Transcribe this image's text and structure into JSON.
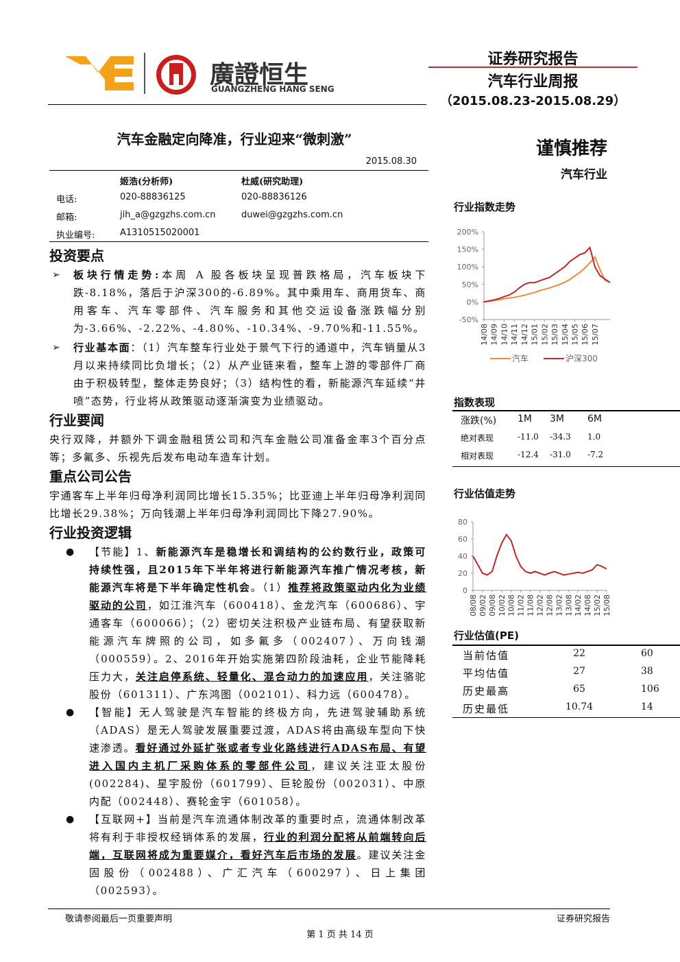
{
  "header": {
    "brand": "廣證恒生",
    "brand_en": "GUANGZHENG HANG SENG",
    "title": "证券研究报告",
    "subtitle": "汽车行业周报",
    "period": "（2015.08.23-2015.08.29）"
  },
  "report": {
    "title": "汽车金融定向降准，行业迎来“微刺激”",
    "date": "2015.08.30"
  },
  "rating": {
    "label": "谨慎推荐",
    "sector": "汽车行业"
  },
  "contacts": {
    "names": [
      "姬浩(分析师)",
      "杜威(研究助理)"
    ],
    "rows": [
      [
        "电话:",
        "020-88836125",
        "020-88836126"
      ],
      [
        "邮箱:",
        "jih_a@gzgzhs.com.cn",
        "duwei@gzgzhs.com.cn"
      ],
      [
        "执业编号:",
        "A1310515020001"
      ]
    ]
  },
  "sections": [
    {
      "heading": "投资要点",
      "bullet": "arrow",
      "items": [
        {
          "runs": [
            {
              "text": "板块行情走势:",
              "style": "bold"
            },
            {
              "text": "本周 A 股各板块呈现普跌格局，汽车板块下跌-8.18%，落后于沪深300的-6.89%。其中乘用车、商用货车、商用客车、汽车零部件、汽车服务和其他交运设备涨跌幅分别为-3.66%、-2.22%、-4.80%、-10.34%、-9.70%和-11.55%。",
              "style": "normal"
            }
          ]
        },
        {
          "runs": [
            {
              "text": "行业基本面",
              "style": "bold"
            },
            {
              "text": "：（1）汽车整车行业处于景气下行的通道中，汽车销量从3月以来持续同比负增长；（2）从产业链来看，整车上游的零部件厂商由于积极转型，整体走势良好；（3）结构性的看，新能源汽车延续“井喷”态势，行业将从政策驱动逐渐演变为业绩驱动。",
              "style": "normal"
            }
          ]
        }
      ]
    },
    {
      "heading": "行业要闻",
      "bullet": "none",
      "items": [
        {
          "runs": [
            {
              "text": "央行双降，并额外下调金融租赁公司和汽车金融公司准备金率3个百分点等；多氟多、乐视先后发布电动车造车计划。",
              "style": "normal"
            }
          ]
        }
      ]
    },
    {
      "heading": "重点公司公告",
      "bullet": "none",
      "items": [
        {
          "runs": [
            {
              "text": "宇通客车上半年归母净利润同比增长15.35%；比亚迪上半年归母净利润同比增长29.38%；万向钱潮上半年归母净利润同比下降27.90%。",
              "style": "normal"
            }
          ]
        }
      ]
    },
    {
      "heading": "行业投资逻辑",
      "bullet": "dot",
      "items": [
        {
          "runs": [
            {
              "text": "【节能】1、",
              "style": "normal"
            },
            {
              "text": "新能源汽车是稳增长和调结构的公约数行业，政策可持续性强，且2015年下半年将进行新能源汽车推广情况考核，新能源汽车将是下半年确定性机会",
              "style": "bold"
            },
            {
              "text": "。（1）",
              "style": "normal"
            },
            {
              "text": "推荐将政策驱动内化为业绩驱动的公司",
              "style": "bold-underline"
            },
            {
              "text": "，如江淮汽车（600418）、金龙汽车（600686）、宇通客车（600066）；（2）密切关注积极产业链布局、有望获取新能源汽车牌照的公司，如多氟多（002407）、万向钱潮（000559）。2、2016年开始实施第四阶段油耗，企业节能降耗压力大，",
              "style": "normal"
            },
            {
              "text": "关注启停系统、轻量化、混合动力的加速应用",
              "style": "bold-underline"
            },
            {
              "text": "，关注骆驼股份（601311）、广东鸿图（002101）、科力远（600478）。",
              "style": "normal"
            }
          ]
        },
        {
          "runs": [
            {
              "text": "【智能】无人驾驶是汽车智能的终极方向，先进驾驶辅助系统（ADAS）是无人驾驶发展重要过渡，ADAS将由高级车型向下快速渗透。",
              "style": "normal"
            },
            {
              "text": "看好通过外延扩张或者专业化路线进行ADAS布局、有望进入国内主机厂采购体系的零部件公司",
              "style": "bold-underline"
            },
            {
              "text": "，建议关注亚太股份(002284)、星宇股份（601799）、巨轮股份（002031）、中原内配（002448）、赛轮金宇（601058）。",
              "style": "normal"
            }
          ]
        },
        {
          "runs": [
            {
              "text": "【互联网+】当前是汽车流通体制改革的重要时点，流通体制改革将有利于非授权经销体系的发展，",
              "style": "normal"
            },
            {
              "text": "行业的利润分配将从前端转向后端，互联网将成为重要媒介，看好汽车后市场的发展",
              "style": "bold-underline"
            },
            {
              "text": "。建议关注金固股份（002488）、广汇汽车（600297）、日上集团（002593）。",
              "style": "normal"
            }
          ]
        }
      ]
    }
  ],
  "chart_data": [
    {
      "type": "line",
      "title": "行业指数走势",
      "categories": [
        "14/08",
        null,
        "14/09",
        null,
        "14/10",
        null,
        "14/11",
        null,
        "14/12",
        null,
        "15/01",
        null,
        "15/02",
        null,
        "15/03",
        null,
        "15/04",
        null,
        "15/05",
        null,
        "15/06",
        null,
        "15/07",
        null,
        null,
        null
      ],
      "series": [
        {
          "name": "汽车",
          "color": "#f0893b",
          "values": [
            0,
            2,
            4,
            6,
            9,
            11,
            13,
            16,
            19,
            23,
            27,
            32,
            36,
            40,
            45,
            50,
            56,
            64,
            74,
            84,
            96,
            112,
            128,
            92,
            62,
            56
          ]
        },
        {
          "name": "沪深300",
          "color": "#c0262d",
          "values": [
            0,
            3,
            6,
            10,
            15,
            20,
            28,
            40,
            50,
            55,
            55,
            60,
            65,
            70,
            80,
            90,
            100,
            115,
            125,
            135,
            140,
            155,
            100,
            75,
            65,
            55
          ]
        }
      ],
      "ylim": [
        -50,
        200
      ],
      "yticks": [
        {
          "value": -50,
          "label": "-50%"
        },
        {
          "value": 0,
          "label": "0%"
        },
        {
          "value": 50,
          "label": "50%"
        },
        {
          "value": 100,
          "label": "100%"
        },
        {
          "value": 150,
          "label": "150%"
        },
        {
          "value": 200,
          "label": "200%"
        }
      ],
      "legend": "bottom"
    },
    {
      "type": "line",
      "title": "行业估值走势",
      "categories": [
        "08/08",
        null,
        "09/02",
        null,
        "09/08",
        null,
        "10/02",
        null,
        "10/08",
        null,
        "11/02",
        null,
        "11/08",
        null,
        "12/02",
        null,
        "12/08",
        null,
        "13/02",
        null,
        "13/08",
        null,
        "14/02",
        null,
        "14/08",
        null,
        "15/02",
        null,
        "15/08"
      ],
      "series": [
        {
          "color": "#c0262d",
          "values": [
            40,
            30,
            20,
            18,
            22,
            40,
            55,
            65,
            58,
            40,
            28,
            22,
            20,
            22,
            20,
            18,
            20,
            22,
            20,
            18,
            19,
            20,
            21,
            20,
            22,
            24,
            30,
            28,
            25
          ]
        }
      ],
      "ylim": [
        0,
        80
      ],
      "yticks": [
        0,
        20,
        40,
        60,
        80
      ]
    }
  ],
  "index_table": {
    "title": "指数表现",
    "header": [
      "涨跌(%)",
      "1M",
      "3M",
      "6M"
    ],
    "rows": [
      [
        "绝对表现",
        "-11.0",
        "-34.3",
        "1.0"
      ],
      [
        "相对表现",
        "-12.4",
        "-31.0",
        "-7.2"
      ]
    ]
  },
  "pe_table": {
    "title": "行业估值(PE)",
    "rows": [
      [
        "当前估值",
        "22",
        "60"
      ],
      [
        "平均估值",
        "27",
        "38"
      ],
      [
        "历史最高",
        "65",
        "106"
      ],
      [
        "历史最低",
        "10.74",
        "14"
      ]
    ]
  },
  "footer": {
    "notice": "敬请参阅最后一页重要声明",
    "label": "证券研究报告",
    "page": "第 1 页 共 14 页"
  }
}
